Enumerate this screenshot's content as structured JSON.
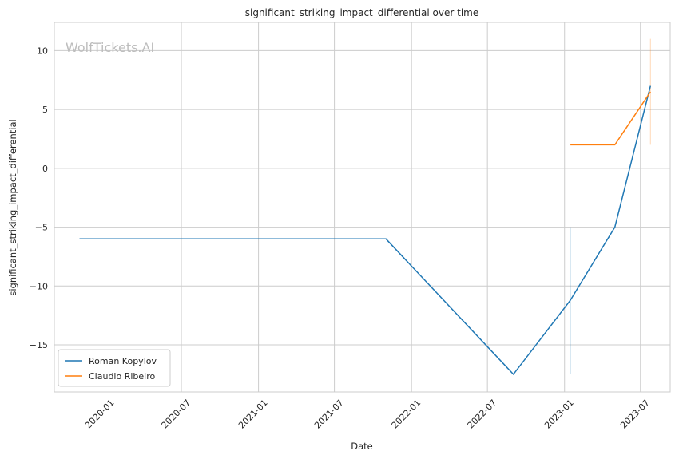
{
  "chart_data": {
    "type": "line",
    "title": "significant_striking_impact_differential over time",
    "xlabel": "Date",
    "ylabel": "significant_striking_impact_differential",
    "watermark": "WolfTickets.AI",
    "x_ticks": [
      "2020-01",
      "2020-07",
      "2021-01",
      "2021-07",
      "2022-01",
      "2022-07",
      "2023-01",
      "2023-07"
    ],
    "y_ticks": [
      -15,
      -10,
      -5,
      0,
      5,
      10
    ],
    "xlim": [
      "2019-09-02",
      "2023-09-10"
    ],
    "ylim": [
      -19,
      12.4
    ],
    "grid": true,
    "legend_position": "lower-left",
    "series": [
      {
        "name": "Roman Kopylov",
        "color": "#1f77b4",
        "points": [
          {
            "x": "2019-11-01",
            "y": -6
          },
          {
            "x": "2021-11-01",
            "y": -6
          },
          {
            "x": "2022-09-01",
            "y": -17.5
          },
          {
            "x": "2023-01-15",
            "y": -11.2
          },
          {
            "x": "2023-05-01",
            "y": -5
          },
          {
            "x": "2023-07-25",
            "y": 7
          }
        ],
        "band": [
          {
            "x": "2023-01-15",
            "low": -17.5,
            "high": -5
          }
        ]
      },
      {
        "name": "Claudio Ribeiro",
        "color": "#ff7f0e",
        "points": [
          {
            "x": "2023-01-15",
            "y": 2
          },
          {
            "x": "2023-05-01",
            "y": 2
          },
          {
            "x": "2023-07-25",
            "y": 6.5
          }
        ],
        "band": [
          {
            "x": "2023-07-25",
            "low": 2,
            "high": 11
          }
        ]
      }
    ]
  }
}
